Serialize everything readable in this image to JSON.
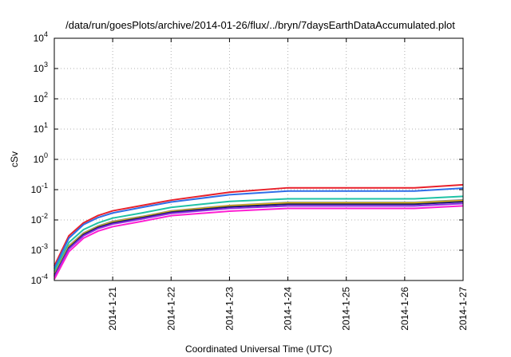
{
  "chart_data": {
    "type": "line",
    "title": "/data/run/goesPlots/archive/2014-01-26/flux/../bryn/7daysEarthDataAccumulated.plot",
    "xlabel": "Coordinated Universal Time (UTC)",
    "ylabel": "cSv",
    "y_scale": "log",
    "ylim": [
      "1e-4",
      "1e4"
    ],
    "xlim": [
      "2014-1-20",
      "2014-1-27"
    ],
    "x_ticks": [
      "2014-1-21",
      "2014-1-22",
      "2014-1-23",
      "2014-1-24",
      "2014-1-25",
      "2014-1-26",
      "2014-1-27"
    ],
    "y_ticks": [
      {
        "base": "10",
        "exp": "-4",
        "value": "1e-4"
      },
      {
        "base": "10",
        "exp": "-3",
        "value": "1e-3"
      },
      {
        "base": "10",
        "exp": "-2",
        "value": "1e-2"
      },
      {
        "base": "10",
        "exp": "-1",
        "value": "1e-1"
      },
      {
        "base": "10",
        "exp": "0",
        "value": "1e0"
      },
      {
        "base": "10",
        "exp": "1",
        "value": "1e1"
      },
      {
        "base": "10",
        "exp": "2",
        "value": "1e2"
      },
      {
        "base": "10",
        "exp": "3",
        "value": "1e3"
      },
      {
        "base": "10",
        "exp": "4",
        "value": "1e4"
      }
    ],
    "grid": true,
    "x": [
      "2014-1-20 00:00",
      "2014-1-20 06:00",
      "2014-1-20 12:00",
      "2014-1-20 18:00",
      "2014-1-21 00:00",
      "2014-1-21 12:00",
      "2014-1-22 00:00",
      "2014-1-23 00:00",
      "2014-1-24 00:00",
      "2014-1-25 00:00",
      "2014-1-26 00:00",
      "2014-1-26 04:00",
      "2014-1-27 00:00"
    ],
    "series": [
      {
        "color": "#e8212b",
        "values": [
          0.0003,
          0.003,
          0.008,
          0.014,
          0.02,
          0.03,
          0.045,
          0.082,
          0.115,
          0.115,
          0.115,
          0.115,
          0.145
        ]
      },
      {
        "color": "#2f6ee8",
        "values": [
          0.00025,
          0.0025,
          0.007,
          0.012,
          0.017,
          0.026,
          0.039,
          0.068,
          0.09,
          0.09,
          0.09,
          0.09,
          0.112
        ]
      },
      {
        "color": "#1fc2a6",
        "values": [
          0.0002,
          0.0018,
          0.0048,
          0.008,
          0.0115,
          0.017,
          0.026,
          0.041,
          0.05,
          0.05,
          0.05,
          0.05,
          0.06
        ]
      },
      {
        "color": "#8a8a8a",
        "values": [
          0.00016,
          0.0014,
          0.0037,
          0.0063,
          0.009,
          0.013,
          0.02,
          0.03,
          0.038,
          0.038,
          0.038,
          0.038,
          0.046
        ]
      },
      {
        "color": "#e6b800",
        "values": [
          0.00015,
          0.0013,
          0.0035,
          0.006,
          0.0085,
          0.0125,
          0.019,
          0.029,
          0.036,
          0.036,
          0.036,
          0.036,
          0.043
        ]
      },
      {
        "color": "#1b1f6b",
        "values": [
          0.00014,
          0.0012,
          0.0033,
          0.0057,
          0.008,
          0.0118,
          0.018,
          0.027,
          0.033,
          0.033,
          0.033,
          0.033,
          0.04
        ]
      },
      {
        "color": "#8a2be2",
        "values": [
          0.00013,
          0.0011,
          0.003,
          0.0052,
          0.0073,
          0.0108,
          0.0165,
          0.024,
          0.029,
          0.029,
          0.029,
          0.029,
          0.035
        ]
      },
      {
        "color": "#ff1fd2",
        "values": [
          0.00011,
          0.0009,
          0.0025,
          0.0043,
          0.006,
          0.009,
          0.0138,
          0.0195,
          0.024,
          0.024,
          0.024,
          0.024,
          0.029
        ]
      }
    ],
    "colors": {
      "axis": "#000000",
      "grid": "#b0b0b0",
      "background": "#ffffff"
    }
  }
}
